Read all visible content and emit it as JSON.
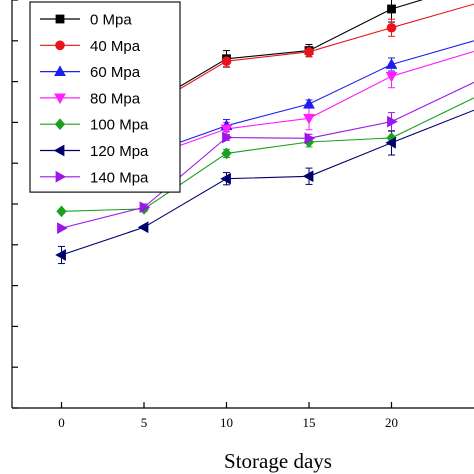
{
  "chart_data": {
    "type": "line",
    "title": "",
    "xlabel": "Storage days",
    "ylabel": "",
    "x": [
      0,
      5,
      10,
      15,
      20,
      25
    ],
    "x_ticks": [
      0,
      5,
      10,
      15,
      20
    ],
    "xlim": [
      -3,
      25
    ],
    "ylim": [
      0,
      100
    ],
    "grid": false,
    "legend_position": "top-left",
    "series": [
      {
        "name": "0 Mpa",
        "color": "#000000",
        "marker": "square",
        "values": [
          72.8,
          73.6,
          85.6,
          87.6,
          97.8,
          103.9
        ],
        "errors": [
          0.0,
          2.3,
          2.0,
          1.5,
          3.2,
          0
        ]
      },
      {
        "name": "40 Mpa",
        "color": "#e8141b",
        "marker": "circle",
        "values": [
          68.6,
          73.0,
          85.0,
          87.3,
          93.2,
          99.0
        ],
        "errors": [
          0.0,
          1.7,
          1.5,
          1.2,
          2.1,
          0
        ]
      },
      {
        "name": "60 Mpa",
        "color": "#1e1eee",
        "marker": "triangle-up",
        "values": [
          57.0,
          62.0,
          69.2,
          74.5,
          84.2,
          90.0
        ],
        "errors": [
          1.0,
          1.5,
          1.5,
          1.0,
          1.6,
          0
        ]
      },
      {
        "name": "80 Mpa",
        "color": "#ff20ff",
        "marker": "triangle-down",
        "values": [
          55.4,
          61.2,
          68.4,
          71.0,
          81.3,
          87.4
        ],
        "errors": [
          0.0,
          1.0,
          1.6,
          2.8,
          2.8,
          0
        ]
      },
      {
        "name": "100 Mpa",
        "color": "#19a01e",
        "marker": "diamond",
        "values": [
          48.2,
          48.8,
          62.4,
          65.2,
          66.2,
          76.0
        ],
        "errors": [
          0.0,
          0.6,
          1.0,
          1.2,
          1.6,
          0
        ]
      },
      {
        "name": "120 Mpa",
        "color": "#00006e",
        "marker": "triangle-left",
        "values": [
          37.5,
          44.3,
          56.2,
          56.8,
          65.0,
          73.0
        ],
        "errors": [
          2.1,
          0.0,
          1.5,
          2.0,
          3.0,
          0
        ]
      },
      {
        "name": "140 Mpa",
        "color": "#9a17e8",
        "marker": "triangle-right",
        "values": [
          44.1,
          49.2,
          66.3,
          66.1,
          70.2,
          79.8
        ],
        "errors": [
          0.0,
          0.8,
          0.7,
          1.0,
          2.2,
          0
        ]
      }
    ]
  }
}
